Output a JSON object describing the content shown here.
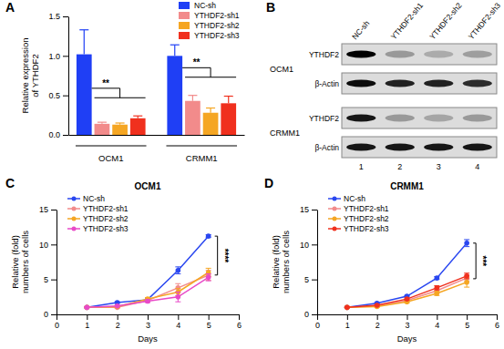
{
  "chart_data": [
    {
      "panel": "A",
      "type": "bar",
      "y_label": "Relative expression of YTHDF2",
      "categories": [
        "OCM1",
        "CRMM1"
      ],
      "series": [
        {
          "name": "NC-sh",
          "color": "#1f3ff5",
          "values": [
            1.02,
            1.0
          ],
          "errors": [
            0.31,
            0.14
          ]
        },
        {
          "name": "YTHDF2-sh1",
          "color": "#f28b8b",
          "values": [
            0.14,
            0.43
          ],
          "errors": [
            0.02,
            0.07
          ]
        },
        {
          "name": "YTHDF2-sh2",
          "color": "#f5a623",
          "values": [
            0.13,
            0.28
          ],
          "errors": [
            0.02,
            0.06
          ]
        },
        {
          "name": "YTHDF2-sh3",
          "color": "#f0301e",
          "values": [
            0.21,
            0.4
          ],
          "errors": [
            0.03,
            0.09
          ]
        }
      ],
      "ylim": [
        0,
        1.5
      ],
      "yticks": [
        {
          "value": 0,
          "label": "0.0"
        },
        0.5,
        {
          "value": 1,
          "label": "1.0"
        },
        1.5
      ],
      "legend": "top-right",
      "annotations": [
        "**",
        "**"
      ]
    },
    {
      "panel": "B",
      "type": "blot",
      "categories": [
        "NC-sh",
        "YTHDF2-sh1",
        "YTHDF2-sh2",
        "YTHDF2-sh3"
      ],
      "lane_numbers": [
        1,
        2,
        3,
        4
      ],
      "groups": [
        {
          "name": "OCM1",
          "rows": [
            {
              "name": "YTHDF2",
              "values": [
                1,
                0.3,
                0.22,
                0.28
              ]
            },
            {
              "name": "β-Actin",
              "values": [
                0.95,
                0.85,
                0.85,
                0.8
              ]
            }
          ]
        },
        {
          "name": "CRMM1",
          "rows": [
            {
              "name": "YTHDF2",
              "values": [
                0.9,
                0.3,
                0.25,
                0.3
              ]
            },
            {
              "name": "β-Actin",
              "values": [
                0.9,
                0.9,
                0.9,
                0.9
              ]
            }
          ]
        }
      ]
    },
    {
      "panel": "C",
      "type": "line",
      "title": "OCM1",
      "x_label": "Days",
      "y_label": "Relative (fold) numbers of cells",
      "x": [
        1,
        2,
        3,
        4,
        5
      ],
      "xlim": [
        0,
        6
      ],
      "xticks": [
        0,
        1,
        2,
        3,
        4,
        5,
        6
      ],
      "ylim": [
        0,
        15
      ],
      "yticks": [
        0,
        5,
        10,
        15
      ],
      "marker": "circle",
      "legend": "top-left",
      "annotations": [
        "****"
      ],
      "series": [
        {
          "name": "NC-sh",
          "color": "#2a47f0",
          "values": [
            1,
            1.7,
            2.1,
            6.3,
            11.2
          ],
          "errors": [
            0.05,
            0.1,
            0.15,
            0.5,
            0.2
          ]
        },
        {
          "name": "YTHDF2-sh1",
          "color": "#f28b8b",
          "values": [
            1,
            1.0,
            2.0,
            3.8,
            5.6
          ],
          "errors": [
            0.05,
            0.1,
            0.2,
            0.6,
            0.7
          ]
        },
        {
          "name": "YTHDF2-sh2",
          "color": "#f5a623",
          "values": [
            1,
            1.1,
            2.2,
            3.2,
            6.0
          ],
          "errors": [
            0.05,
            0.15,
            0.2,
            0.5,
            0.6
          ]
        },
        {
          "name": "YTHDF2-sh3",
          "color": "#e84ac8",
          "values": [
            1,
            1.2,
            1.9,
            2.5,
            5.3
          ],
          "errors": [
            0.05,
            0.1,
            0.2,
            0.7,
            0.5
          ]
        }
      ]
    },
    {
      "panel": "D",
      "type": "line",
      "title": "CRMM1",
      "x_label": "Days",
      "y_label": "Relative (fold) numbers of cells",
      "x": [
        1,
        2,
        3,
        4,
        5
      ],
      "xlim": [
        0,
        6
      ],
      "xticks": [
        0,
        1,
        2,
        3,
        4,
        5,
        6
      ],
      "ylim": [
        0,
        15
      ],
      "yticks": [
        0,
        5,
        10,
        15
      ],
      "marker": "circle",
      "legend": "top-left",
      "annotations": [
        "***"
      ],
      "series": [
        {
          "name": "NC-sh",
          "color": "#2a47f0",
          "values": [
            1,
            1.6,
            2.6,
            5.2,
            10.2
          ],
          "errors": [
            0.05,
            0.1,
            0.1,
            0.2,
            0.5
          ]
        },
        {
          "name": "YTHDF2-sh1",
          "color": "#f28b8b",
          "values": [
            1,
            1.2,
            2.0,
            3.4,
            5.2
          ],
          "errors": [
            0.05,
            0.1,
            0.15,
            0.3,
            0.4
          ]
        },
        {
          "name": "YTHDF2-sh2",
          "color": "#f5a623",
          "values": [
            1,
            1.1,
            1.8,
            3.0,
            4.6
          ],
          "errors": [
            0.05,
            0.1,
            0.15,
            0.3,
            0.7
          ]
        },
        {
          "name": "YTHDF2-sh3",
          "color": "#f0301e",
          "values": [
            1,
            1.3,
            2.2,
            3.8,
            5.5
          ],
          "errors": [
            0.05,
            0.1,
            0.15,
            0.3,
            0.4
          ]
        }
      ]
    }
  ]
}
